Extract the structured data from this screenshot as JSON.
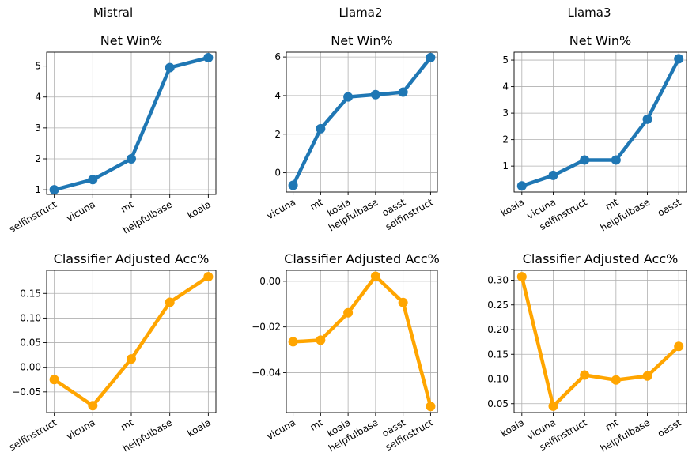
{
  "columns": [
    "Mistral",
    "Llama2",
    "Llama3"
  ],
  "chart_data": [
    {
      "type": "line",
      "model": "Mistral",
      "title": "Net Win%",
      "categories": [
        "selfinstruct",
        "vicuna",
        "mt",
        "helpfulbase",
        "koala"
      ],
      "values": [
        1.0,
        1.33,
        2.0,
        4.95,
        5.27
      ],
      "ylim": [
        0.85,
        5.45
      ],
      "yticks": [
        1,
        2,
        3,
        4,
        5
      ],
      "ytick_labels": [
        "1",
        "2",
        "3",
        "4",
        "5"
      ],
      "color": "#1f77b4",
      "grid": true
    },
    {
      "type": "line",
      "model": "Llama2",
      "title": "Net Win%",
      "categories": [
        "vicuna",
        "mt",
        "koala",
        "helpfulbase",
        "oasst",
        "selfinstruct"
      ],
      "values": [
        -0.65,
        2.28,
        3.93,
        4.05,
        4.18,
        5.97
      ],
      "ylim": [
        -1.0,
        6.25
      ],
      "yticks": [
        0,
        2,
        4,
        6
      ],
      "ytick_labels": [
        "0",
        "2",
        "4",
        "6"
      ],
      "color": "#1f77b4",
      "grid": true
    },
    {
      "type": "line",
      "model": "Llama3",
      "title": "Net Win%",
      "categories": [
        "koala",
        "vicuna",
        "selfinstruct",
        "mt",
        "helpfulbase",
        "oasst"
      ],
      "values": [
        0.25,
        0.65,
        1.23,
        1.23,
        2.77,
        5.05
      ],
      "ylim": [
        0.02,
        5.3
      ],
      "yticks": [
        1,
        2,
        3,
        4,
        5
      ],
      "ytick_labels": [
        "1",
        "2",
        "3",
        "4",
        "5"
      ],
      "color": "#1f77b4",
      "grid": true
    },
    {
      "type": "line",
      "model": "Mistral",
      "title": "Classifier Adjusted Acc%",
      "categories": [
        "selfinstruct",
        "vicuna",
        "mt",
        "helpfulbase",
        "koala"
      ],
      "values": [
        -0.025,
        -0.078,
        0.017,
        0.132,
        0.184
      ],
      "ylim": [
        -0.092,
        0.197
      ],
      "yticks": [
        -0.05,
        0.0,
        0.05,
        0.1,
        0.15
      ],
      "ytick_labels": [
        "−0.05",
        "0.00",
        "0.05",
        "0.10",
        "0.15"
      ],
      "color": "#ffa500",
      "grid": true
    },
    {
      "type": "line",
      "model": "Llama2",
      "title": "Classifier Adjusted Acc%",
      "categories": [
        "vicuna",
        "mt",
        "koala",
        "helpfulbase",
        "oasst",
        "selfinstruct"
      ],
      "values": [
        -0.0265,
        -0.0258,
        -0.0138,
        0.0022,
        -0.0093,
        -0.0548
      ],
      "ylim": [
        -0.0575,
        0.0048
      ],
      "yticks": [
        -0.04,
        -0.02,
        0.0
      ],
      "ytick_labels": [
        "−0.04",
        "−0.02",
        "0.00"
      ],
      "color": "#ffa500",
      "grid": true
    },
    {
      "type": "line",
      "model": "Llama3",
      "title": "Classifier Adjusted Acc%",
      "categories": [
        "koala",
        "vicuna",
        "selfinstruct",
        "mt",
        "helpfulbase",
        "oasst"
      ],
      "values": [
        0.307,
        0.045,
        0.108,
        0.098,
        0.106,
        0.166
      ],
      "ylim": [
        0.032,
        0.32
      ],
      "yticks": [
        0.05,
        0.1,
        0.15,
        0.2,
        0.25,
        0.3
      ],
      "ytick_labels": [
        "0.05",
        "0.10",
        "0.15",
        "0.20",
        "0.25",
        "0.30"
      ],
      "color": "#ffa500",
      "grid": true
    }
  ]
}
